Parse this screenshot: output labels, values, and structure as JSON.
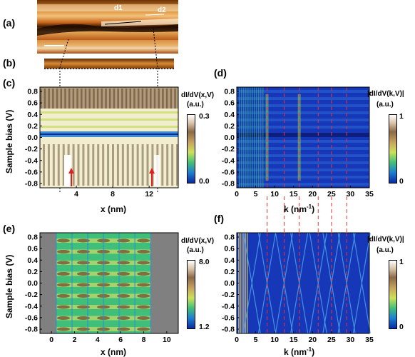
{
  "figure": {
    "panel_labels": [
      "(a)",
      "(b)",
      "(c)",
      "(d)",
      "(e)",
      "(f)"
    ],
    "panel_a": {
      "markers": [
        "d1",
        "d2"
      ]
    },
    "panel_c": {
      "ylabel": "Sample bias (V)",
      "xlabel": "x (nm)",
      "yticks": [
        "0.8",
        "0.6",
        "0.4",
        "0.2",
        "0.0",
        "-0.2",
        "-0.4",
        "-0.6",
        "-0.8"
      ],
      "xticks": [
        "4",
        "8",
        "12"
      ],
      "colorbar_title_1": "dI/dV(x,V)",
      "colorbar_title_2": "(a.u.)",
      "colorbar_max": "0.3",
      "colorbar_min": "0.0"
    },
    "panel_d": {
      "xlabel": "k (nm",
      "xlabel_sup": "-1",
      "xlabel_end": ")",
      "yticks": [
        "0.8",
        "0.6",
        "0.4",
        "0.2",
        "0.0",
        "-0.2",
        "-0.4",
        "-0.6",
        "-0.8"
      ],
      "xticks": [
        "0",
        "5",
        "10",
        "15",
        "20",
        "25",
        "30",
        "35"
      ],
      "colorbar_title_1": "|dI/dV(k,V)|",
      "colorbar_title_2": "(a.u.)",
      "colorbar_max": "1",
      "colorbar_min": "0"
    },
    "panel_e": {
      "ylabel": "Sample bias (V)",
      "xlabel": "x (nm)",
      "yticks": [
        "0.8",
        "0.6",
        "0.4",
        "0.2",
        "0.0",
        "-0.2",
        "-0.4",
        "-0.6",
        "-0.8"
      ],
      "xticks": [
        "0",
        "2",
        "4",
        "6",
        "8",
        "10"
      ],
      "colorbar_title_1": "dI/dV(x,V)",
      "colorbar_title_2": "(a.u.)",
      "colorbar_max": "8.0",
      "colorbar_min": "1.2"
    },
    "panel_f": {
      "xlabel": "k (nm",
      "xlabel_sup": "-1",
      "xlabel_end": ")",
      "yticks": [
        "0.8",
        "0.6",
        "0.4",
        "0.2",
        "0.0",
        "-0.2",
        "-0.4",
        "-0.6",
        "-0.8"
      ],
      "xticks": [
        "0",
        "5",
        "10",
        "15",
        "20",
        "25",
        "30",
        "35"
      ],
      "colorbar_title_1": "|dI/dV(k,V)|",
      "colorbar_title_2": "(a.u.)",
      "colorbar_max": "1",
      "colorbar_min": "0"
    },
    "k_guides_nm_inv": [
      8,
      12.5,
      16.5,
      21.5,
      25,
      29
    ]
  }
}
